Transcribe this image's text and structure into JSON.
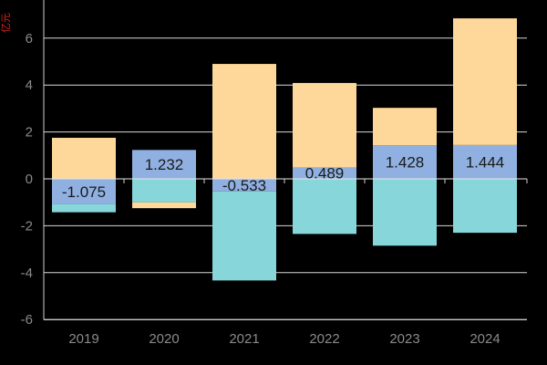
{
  "chart_data": {
    "type": "bar",
    "stacked": true,
    "ylabel": "亿元",
    "categories": [
      "2019",
      "2020",
      "2021",
      "2022",
      "2023",
      "2024"
    ],
    "ylim": [
      -6,
      7.5
    ],
    "yticks": [
      -6,
      -4,
      -2,
      0,
      2,
      4,
      6
    ],
    "grid": true,
    "series": [
      {
        "color": "#8fb0e0",
        "values": [
          -1.075,
          1.232,
          -0.533,
          0.489,
          1.428,
          1.444
        ],
        "labels": [
          "-1.075",
          "1.232",
          "-0.533",
          "0.489",
          "1.428",
          "1.444"
        ]
      },
      {
        "color": "#86d6da",
        "values": [
          -0.35,
          -1.0,
          -3.8,
          -2.35,
          -2.85,
          -2.3
        ]
      },
      {
        "color": "#fdd89a",
        "values": [
          1.75,
          -0.25,
          4.9,
          3.6,
          1.6,
          5.4
        ]
      }
    ]
  }
}
